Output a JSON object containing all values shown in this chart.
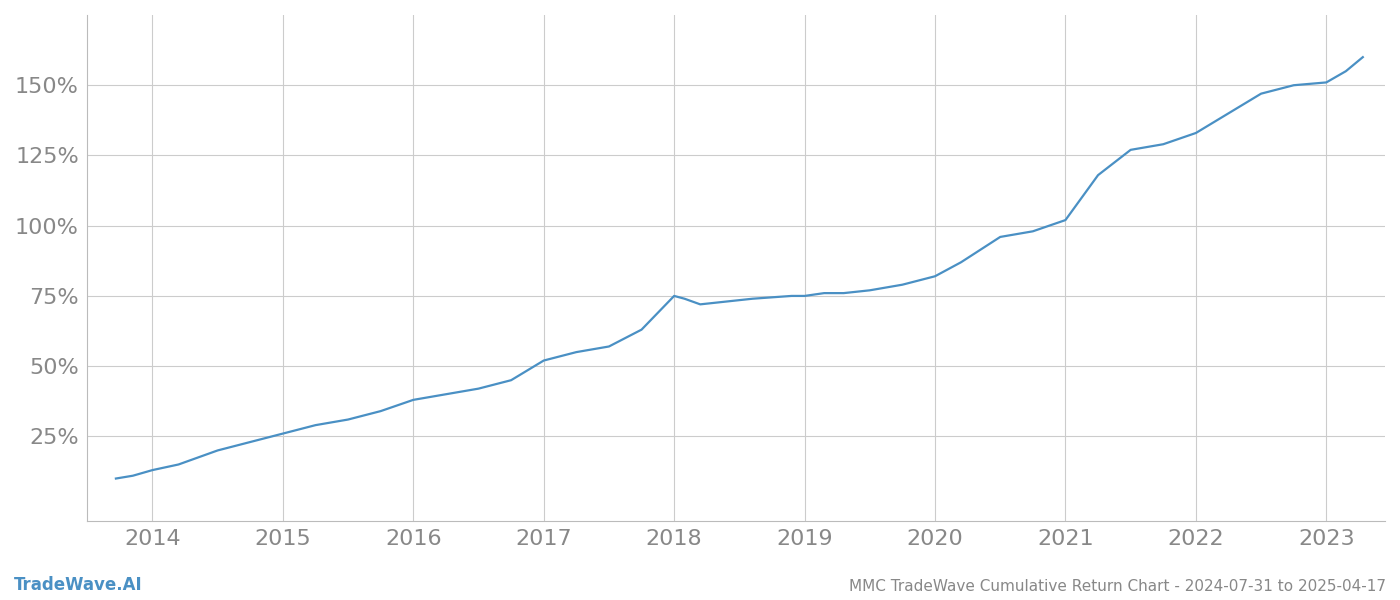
{
  "title": "MMC TradeWave Cumulative Return Chart - 2024-07-31 to 2025-04-17",
  "watermark": "TradeWave.AI",
  "line_color": "#4a90c4",
  "background_color": "#ffffff",
  "grid_color": "#cccccc",
  "x_years": [
    2014,
    2015,
    2016,
    2017,
    2018,
    2019,
    2020,
    2021,
    2022,
    2023
  ],
  "data_x": [
    2013.72,
    2013.85,
    2014.0,
    2014.2,
    2014.5,
    2014.75,
    2015.0,
    2015.25,
    2015.5,
    2015.75,
    2016.0,
    2016.25,
    2016.5,
    2016.75,
    2017.0,
    2017.25,
    2017.5,
    2017.75,
    2018.0,
    2018.08,
    2018.2,
    2018.4,
    2018.6,
    2018.9,
    2019.0,
    2019.15,
    2019.3,
    2019.5,
    2019.75,
    2020.0,
    2020.2,
    2020.5,
    2020.75,
    2021.0,
    2021.25,
    2021.5,
    2021.75,
    2022.0,
    2022.25,
    2022.5,
    2022.75,
    2023.0,
    2023.15,
    2023.28
  ],
  "data_y": [
    10,
    11,
    13,
    15,
    20,
    23,
    26,
    29,
    31,
    34,
    38,
    40,
    42,
    45,
    52,
    55,
    57,
    63,
    75,
    74,
    72,
    73,
    74,
    75,
    75,
    76,
    76,
    77,
    79,
    82,
    87,
    96,
    98,
    102,
    118,
    127,
    129,
    133,
    140,
    147,
    150,
    151,
    155,
    160
  ],
  "yticks": [
    25,
    50,
    75,
    100,
    125,
    150
  ],
  "ylim": [
    -5,
    175
  ],
  "xlim": [
    2013.5,
    2023.45
  ],
  "tick_color": "#888888",
  "tick_fontsize": 16,
  "title_fontsize": 11,
  "watermark_fontsize": 12,
  "line_width": 1.6
}
